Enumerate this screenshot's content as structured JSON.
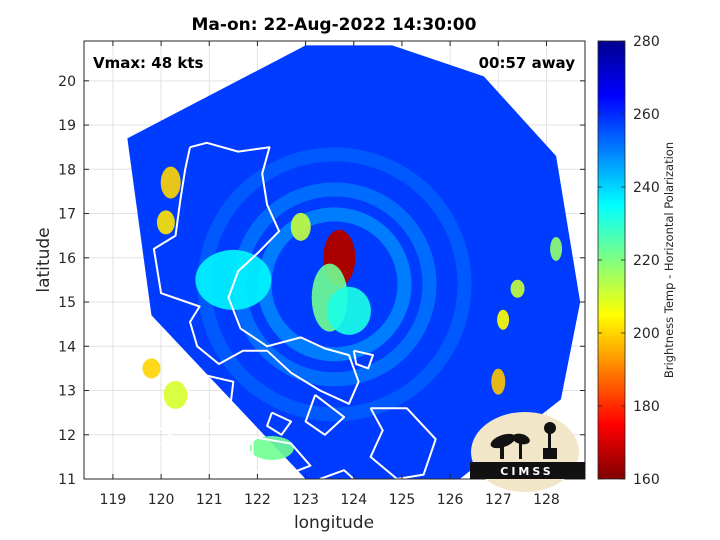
{
  "chart_data": {
    "type": "heatmap",
    "title": "Ma-on: 22-Aug-2022 14:30:00",
    "xlabel": "longitude",
    "ylabel": "latitude",
    "xlim": [
      118.4,
      128.8
    ],
    "ylim": [
      11,
      20.9
    ],
    "xticks": [
      119,
      120,
      121,
      122,
      123,
      124,
      125,
      126,
      127,
      128
    ],
    "yticks": [
      11,
      12,
      13,
      14,
      15,
      16,
      17,
      18,
      19,
      20
    ],
    "grid": true,
    "annotations": {
      "left": "Vmax: 48 kts",
      "right": "00:57 away"
    },
    "colorbar": {
      "label": "Brightness Temp - Horizontal Polarization",
      "range": [
        160,
        280
      ],
      "ticks": [
        160,
        180,
        200,
        220,
        240,
        260,
        280
      ]
    },
    "colormap": [
      "#7f0000",
      "#ff0000",
      "#ff8000",
      "#ffff00",
      "#80ff80",
      "#00ffff",
      "#0080ff",
      "#0000ff",
      "#00008f"
    ],
    "storm_center": [
      123.6,
      15.4
    ],
    "swath_edge_lon": [
      119.3,
      123.0,
      124.8,
      126.7,
      128.2,
      128.7,
      128.3,
      126.2,
      123.0,
      119.8
    ],
    "swath_edge_lat": [
      18.7,
      20.8,
      20.8,
      20.1,
      18.3,
      15.0,
      12.8,
      11.0,
      11.0,
      14.7
    ],
    "background_temp": 258,
    "features": [
      {
        "lon": 123.7,
        "lat": 16.0,
        "temp": 165
      },
      {
        "lon": 123.5,
        "lat": 15.1,
        "temp": 222
      },
      {
        "lon": 123.9,
        "lat": 14.8,
        "temp": 232
      },
      {
        "lon": 122.9,
        "lat": 16.7,
        "temp": 212
      },
      {
        "lon": 120.2,
        "lat": 17.7,
        "temp": 200
      },
      {
        "lon": 120.1,
        "lat": 16.8,
        "temp": 202
      },
      {
        "lon": 119.8,
        "lat": 13.5,
        "temp": 200
      },
      {
        "lon": 120.3,
        "lat": 12.9,
        "temp": 210
      },
      {
        "lon": 127.0,
        "lat": 13.2,
        "temp": 198
      },
      {
        "lon": 127.1,
        "lat": 14.6,
        "temp": 205
      },
      {
        "lon": 127.4,
        "lat": 15.3,
        "temp": 212
      },
      {
        "lon": 128.2,
        "lat": 16.2,
        "temp": 218
      },
      {
        "lon": 122.3,
        "lat": 11.7,
        "temp": 222
      },
      {
        "lon": 121.5,
        "lat": 15.5,
        "temp": 236
      }
    ],
    "coastlines": [
      [
        [
          120.6,
          18.5
        ],
        [
          120.95,
          18.6
        ],
        [
          121.6,
          18.4
        ],
        [
          122.25,
          18.5
        ],
        [
          122.1,
          17.9
        ],
        [
          122.2,
          17.2
        ],
        [
          122.45,
          16.6
        ],
        [
          122.0,
          16.1
        ],
        [
          121.6,
          15.7
        ],
        [
          121.4,
          15.1
        ],
        [
          121.65,
          14.4
        ],
        [
          122.2,
          14.0
        ],
        [
          122.9,
          14.2
        ],
        [
          123.4,
          13.95
        ],
        [
          123.9,
          13.8
        ],
        [
          124.1,
          13.2
        ],
        [
          123.9,
          12.7
        ],
        [
          123.3,
          13.0
        ],
        [
          122.7,
          13.4
        ],
        [
          122.2,
          13.9
        ],
        [
          121.7,
          13.9
        ],
        [
          121.2,
          13.6
        ],
        [
          120.75,
          14.0
        ],
        [
          120.6,
          14.55
        ],
        [
          120.8,
          14.9
        ],
        [
          120.0,
          15.2
        ],
        [
          119.85,
          16.2
        ],
        [
          120.3,
          16.5
        ],
        [
          120.4,
          17.3
        ],
        [
          120.5,
          18.0
        ],
        [
          120.6,
          18.5
        ]
      ],
      [
        [
          120.3,
          13.5
        ],
        [
          121.5,
          13.2
        ],
        [
          121.4,
          12.3
        ],
        [
          121.0,
          12.3
        ],
        [
          120.5,
          13.1
        ],
        [
          120.3,
          13.5
        ]
      ],
      [
        [
          124.35,
          12.6
        ],
        [
          125.1,
          12.6
        ],
        [
          125.7,
          11.9
        ],
        [
          125.45,
          11.1
        ],
        [
          124.9,
          11.0
        ],
        [
          124.35,
          11.5
        ],
        [
          124.6,
          12.1
        ],
        [
          124.35,
          12.6
        ]
      ],
      [
        [
          123.2,
          12.9
        ],
        [
          123.8,
          12.4
        ],
        [
          123.4,
          12.0
        ],
        [
          123.0,
          12.3
        ],
        [
          123.2,
          12.9
        ]
      ],
      [
        [
          124.0,
          13.9
        ],
        [
          124.4,
          13.8
        ],
        [
          124.3,
          13.5
        ],
        [
          124.05,
          13.6
        ],
        [
          124.0,
          13.9
        ]
      ],
      [
        [
          122.3,
          12.5
        ],
        [
          122.7,
          12.3
        ],
        [
          122.5,
          12.0
        ],
        [
          122.2,
          12.2
        ],
        [
          122.3,
          12.5
        ]
      ],
      [
        [
          121.9,
          11.95
        ],
        [
          122.7,
          11.8
        ],
        [
          123.1,
          11.3
        ],
        [
          122.5,
          11.05
        ],
        [
          121.9,
          11.2
        ],
        [
          121.9,
          11.95
        ]
      ],
      [
        [
          123.3,
          11.0
        ],
        [
          123.8,
          11.2
        ],
        [
          124.0,
          11.0
        ]
      ],
      [
        [
          119.3,
          11.0
        ],
        [
          119.6,
          11.4
        ]
      ],
      [
        [
          119.9,
          12.2
        ],
        [
          120.2,
          12.0
        ],
        [
          120.0,
          11.8
        ]
      ]
    ]
  }
}
